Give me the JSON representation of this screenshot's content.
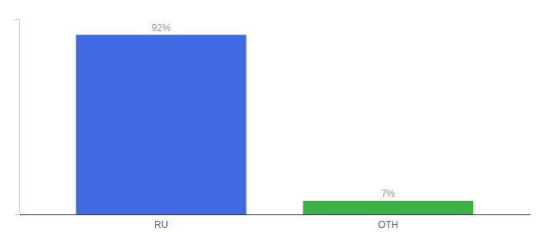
{
  "chart_data": {
    "type": "bar",
    "categories": [
      "RU",
      "OTH"
    ],
    "values": [
      92,
      7
    ],
    "colors": [
      "#4169e1",
      "#3cb043"
    ],
    "data_labels": true,
    "value_labels": [
      "92%",
      "7%"
    ],
    "ylim": [
      0,
      100
    ],
    "tick_labels": "x"
  }
}
